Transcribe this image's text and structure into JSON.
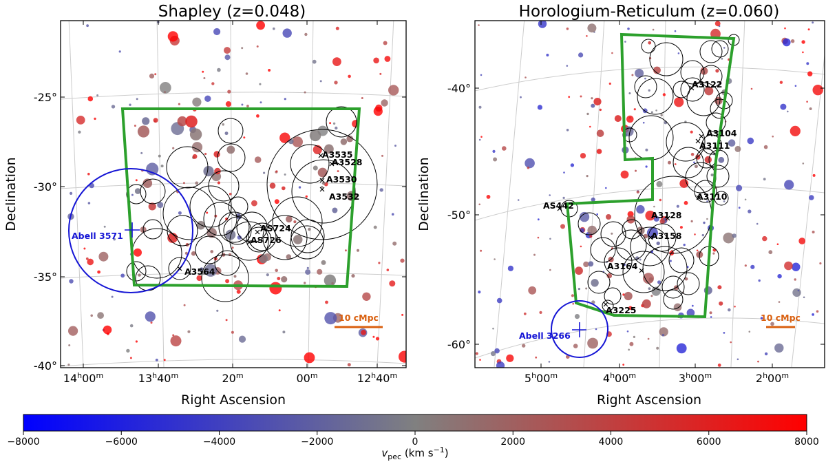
{
  "chart_data": [
    {
      "type": "scatter",
      "title": "Shapley (z=0.048)",
      "xlabel": "Right Ascension",
      "ylabel": "Declination",
      "x_ticks": [
        "14h00m",
        "13h40m",
        "20m",
        "00m",
        "12h40m"
      ],
      "y_ticks": [
        "-25°",
        "-30°",
        "-35°",
        "-40°"
      ],
      "ra_range": [
        "14h13m",
        "12h32m"
      ],
      "dec_range": [
        -40.2,
        -20.8
      ],
      "grid": true,
      "legend": "none",
      "scale_bar": "10 cMpc",
      "survey_region_color": "#2ca02c",
      "clusters": [
        {
          "name": "A3535",
          "ra_h": 12.95,
          "dec": -28.5
        },
        {
          "name": "A3528",
          "ra_h": 12.9,
          "dec": -29.0
        },
        {
          "name": "A3530",
          "ra_h": 12.93,
          "dec": -30.3
        },
        {
          "name": "A3532",
          "ra_h": 12.95,
          "dec": -30.4
        },
        {
          "name": "AS724",
          "ra_h": 13.27,
          "dec": -32.9
        },
        {
          "name": "AS726",
          "ra_h": 13.31,
          "dec": -33.1
        },
        {
          "name": "A3564",
          "ra_h": 13.58,
          "dec": -34.7
        }
      ],
      "reference_cluster": {
        "name": "Abell 3571",
        "ra_h": 13.79,
        "dec": -32.8,
        "color": "#1010d0"
      }
    },
    {
      "type": "scatter",
      "title": "Horologium-Reticulum (z=0.060)",
      "xlabel": "Right Ascension",
      "ylabel": "Declination",
      "x_ticks": [
        "5h00m",
        "4h00m",
        "3h00m",
        "2h00m"
      ],
      "y_ticks": [
        "-40°",
        "-50°",
        "-60°"
      ],
      "grid": true,
      "legend": "none",
      "scale_bar": "10 cMpc",
      "survey_region_color": "#2ca02c",
      "clusters": [
        {
          "name": "A3122",
          "ra_h": 3.37,
          "dec": -41.3
        },
        {
          "name": "A3104",
          "ra_h": 3.23,
          "dec": -45.4
        },
        {
          "name": "A3111",
          "ra_h": 3.3,
          "dec": -45.7
        },
        {
          "name": "A3110",
          "ra_h": 3.27,
          "dec": -50.9
        },
        {
          "name": "AS442",
          "ra_h": 4.65,
          "dec": -49.5
        },
        {
          "name": "A3128",
          "ra_h": 3.5,
          "dec": -52.6
        },
        {
          "name": "A3158",
          "ra_h": 3.71,
          "dec": -53.6
        },
        {
          "name": "A3164",
          "ra_h": 3.77,
          "dec": -57.1
        },
        {
          "name": "A3225",
          "ra_h": 4.32,
          "dec": -59.2
        }
      ],
      "reference_cluster": {
        "name": "Abell 3266",
        "ra_h": 4.52,
        "dec": -61.4,
        "color": "#1010d0"
      }
    }
  ],
  "colorbar": {
    "label": "v_pec (km s^-1)",
    "label_main": "v",
    "label_sub": "pec",
    "label_unit": " (km s",
    "label_sup": "−1",
    "label_close": ")",
    "min": -8000,
    "max": 8000,
    "ticks": [
      "−8000",
      "−6000",
      "−4000",
      "−2000",
      "0",
      "2000",
      "4000",
      "6000",
      "8000"
    ],
    "colors": [
      "#0000ff",
      "#808080",
      "#ff0000"
    ]
  }
}
